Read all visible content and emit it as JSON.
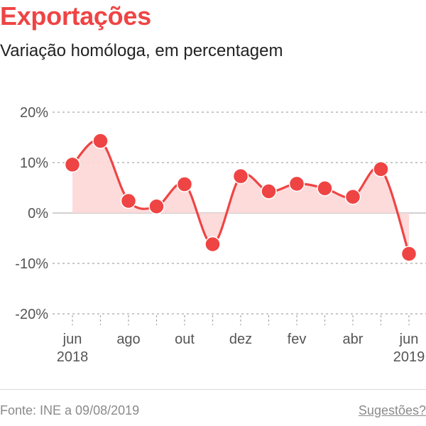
{
  "title": "Exportações",
  "subtitle": "Variação homóloga, em percentagem",
  "footer": {
    "source": "Fonte: INE a 09/08/2019",
    "suggestions": "Sugestões?"
  },
  "colors": {
    "title": "#ef4444",
    "line": "#ef4444",
    "area": "#fdd7d7",
    "point": "#ef4444"
  },
  "chart_data": {
    "type": "line",
    "title": "Exportações",
    "subtitle": "Variação homóloga, em percentagem",
    "x": [
      "2018-06",
      "2018-07",
      "2018-08",
      "2018-09",
      "2018-10",
      "2018-11",
      "2018-12",
      "2019-01",
      "2019-02",
      "2019-03",
      "2019-04",
      "2019-05",
      "2019-06"
    ],
    "series": [
      {
        "values": [
          9.6,
          14.3,
          2.4,
          1.3,
          5.7,
          -6.2,
          7.3,
          4.3,
          5.8,
          4.9,
          3.2,
          8.7,
          -8.1
        ]
      }
    ],
    "ylim": [
      -20,
      20
    ],
    "yticks": [
      20,
      10,
      0,
      -10,
      -20
    ],
    "ytick_labels": [
      "20%",
      "10%",
      "0%",
      "-10%",
      "-20%"
    ],
    "xtick_labels": [
      {
        "index": 0,
        "lines": [
          "jun",
          "2018"
        ]
      },
      {
        "index": 2,
        "lines": [
          "ago"
        ]
      },
      {
        "index": 4,
        "lines": [
          "out"
        ]
      },
      {
        "index": 6,
        "lines": [
          "dez"
        ]
      },
      {
        "index": 8,
        "lines": [
          "fev"
        ]
      },
      {
        "index": 10,
        "lines": [
          "abr"
        ]
      },
      {
        "index": 12,
        "lines": [
          "jun",
          "2019"
        ]
      }
    ],
    "grid": true,
    "area_fill": true,
    "markers": true
  }
}
